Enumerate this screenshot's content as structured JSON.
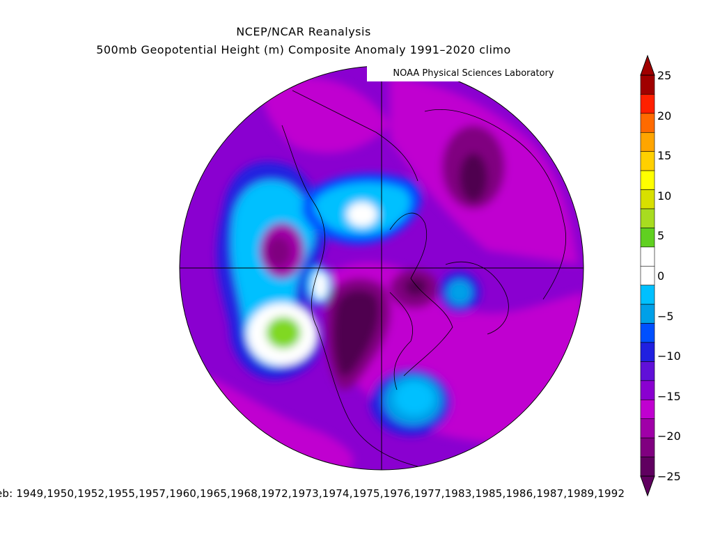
{
  "header": {
    "line1": "NCEP/NCAR Reanalysis",
    "line2": "500mb Geopotential Height (m) Composite Anomaly 1991–2020 climo",
    "credit": "NOAA Physical Sciences Laboratory"
  },
  "footer": {
    "years_text": "eb: 1949,1950,1952,1955,1957,1960,1965,1968,1972,1973,1974,1975,1976,1977,1983,1985,1986,1987,1989,1992"
  },
  "colorbar": {
    "ticks": [
      "25",
      "20",
      "15",
      "10",
      "5",
      "0",
      "−5",
      "−10",
      "−15",
      "−20",
      "−25"
    ],
    "colors": [
      "#a00000",
      "#ff2000",
      "#ff6a00",
      "#ffa500",
      "#ffd000",
      "#ffff00",
      "#d8e000",
      "#a8dc20",
      "#60d020",
      "#ffffff",
      "#ffffff",
      "#00c0ff",
      "#00a0e8",
      "#0050ff",
      "#2020e0",
      "#6010d8",
      "#8a00d0",
      "#c000d0",
      "#a000a8",
      "#800080",
      "#600060"
    ]
  },
  "colors": {
    "base": "#8a00d0",
    "magenta": "#c000d0",
    "dark_purple": "#800080",
    "darkest": "#500050",
    "blue": "#2020e0",
    "mid_blue": "#0050ff",
    "light_blue": "#00a0e8",
    "cyan": "#00c0ff",
    "white": "#ffffff",
    "green": "#80d820"
  }
}
